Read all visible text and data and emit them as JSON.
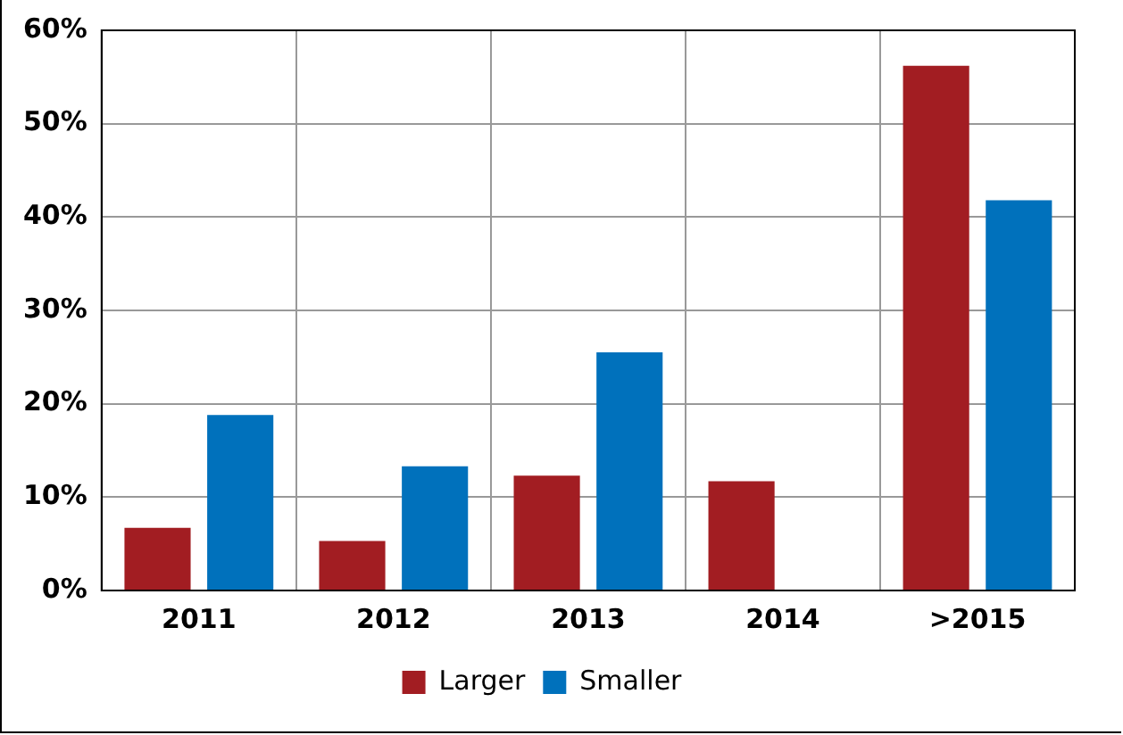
{
  "chart_data": {
    "type": "bar",
    "categories": [
      "2011",
      "2012",
      "2013",
      "2014",
      ">2015"
    ],
    "series": [
      {
        "name": "Larger",
        "color": "#a21d22",
        "values": [
          6.7,
          5.3,
          12.3,
          11.7,
          56.2
        ]
      },
      {
        "name": "Smaller",
        "color": "#0071bc",
        "values": [
          18.8,
          13.3,
          25.5,
          null,
          41.8
        ]
      }
    ],
    "ylim": [
      0,
      60
    ],
    "yticks": [
      {
        "value": 0,
        "label": "0%"
      },
      {
        "value": 10,
        "label": "10%"
      },
      {
        "value": 20,
        "label": "20%"
      },
      {
        "value": 30,
        "label": "30%"
      },
      {
        "value": 40,
        "label": "40%"
      },
      {
        "value": 50,
        "label": "50%"
      },
      {
        "value": 60,
        "label": "60%"
      }
    ],
    "grid": true,
    "legend": "bottom"
  }
}
